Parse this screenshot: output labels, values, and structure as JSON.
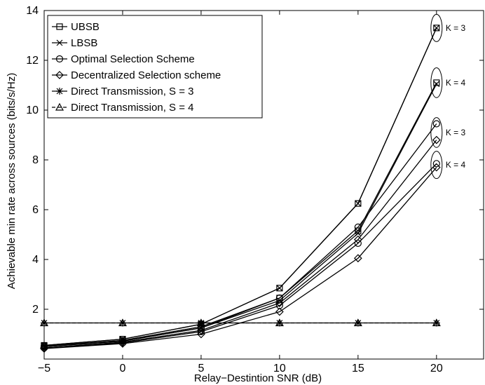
{
  "chart_data": {
    "type": "line",
    "xlabel": "Relay−Destintion SNR (dB)",
    "ylabel": "Achievable min rate across sources (bits/s/Hz)",
    "xlim": [
      -5,
      23
    ],
    "ylim": [
      0,
      14
    ],
    "x_ticks": [
      "−5",
      "0",
      "5",
      "10",
      "15",
      "20"
    ],
    "y_ticks": [
      "2",
      "4",
      "6",
      "8",
      "10",
      "12",
      "14"
    ],
    "grid": false,
    "legend_position": "top-left",
    "legend": [
      {
        "label": "UBSB",
        "marker": "square",
        "dash": "solid"
      },
      {
        "label": "LBSB",
        "marker": "x",
        "dash": "solid"
      },
      {
        "label": "Optimal Selection Scheme",
        "marker": "circle",
        "dash": "solid"
      },
      {
        "label": "Decentralized Selection scheme",
        "marker": "diamond",
        "dash": "solid"
      },
      {
        "label": "Direct Transmission, S = 3",
        "marker": "star",
        "dash": "solid"
      },
      {
        "label": "Direct Transmission, S = 4",
        "marker": "triangle",
        "dash": "dashed"
      }
    ],
    "x": [
      -5,
      0,
      5,
      10,
      15,
      20
    ],
    "series": [
      {
        "group": "UBSB",
        "marker": "square",
        "dash": "solid",
        "values": [
          0.55,
          0.8,
          1.4,
          2.85,
          6.25,
          13.3
        ]
      },
      {
        "group": "LBSB",
        "marker": "x",
        "dash": "solid",
        "values": [
          0.55,
          0.8,
          1.4,
          2.85,
          6.25,
          13.3
        ]
      },
      {
        "group": "UBSB",
        "marker": "square",
        "dash": "solid",
        "values": [
          0.52,
          0.75,
          1.3,
          2.45,
          5.15,
          11.1
        ]
      },
      {
        "group": "LBSB",
        "marker": "x",
        "dash": "solid",
        "values": [
          0.5,
          0.72,
          1.25,
          2.35,
          5.05,
          11.05
        ]
      },
      {
        "group": "Optimal Selection Scheme",
        "marker": "circle",
        "dash": "solid",
        "values": [
          0.5,
          0.72,
          1.25,
          2.45,
          5.3,
          9.45
        ]
      },
      {
        "group": "Decentralized Selection scheme",
        "marker": "diamond",
        "dash": "solid",
        "values": [
          0.45,
          0.68,
          1.15,
          2.25,
          4.8,
          8.8
        ]
      },
      {
        "group": "Optimal Selection Scheme",
        "marker": "circle",
        "dash": "solid",
        "values": [
          0.45,
          0.65,
          1.1,
          2.15,
          4.65,
          7.85
        ]
      },
      {
        "group": "Decentralized Selection scheme",
        "marker": "diamond",
        "dash": "solid",
        "values": [
          0.42,
          0.62,
          1.0,
          1.9,
          4.05,
          7.7
        ]
      },
      {
        "group": "Direct Transmission, S = 3",
        "marker": "star",
        "dash": "solid",
        "values": [
          1.45,
          1.45,
          1.45,
          1.45,
          1.45,
          1.45
        ]
      },
      {
        "group": "Direct Transmission, S = 4",
        "marker": "triangle",
        "dash": "dashed",
        "values": [
          1.45,
          1.45,
          1.45,
          1.45,
          1.45,
          1.45
        ]
      }
    ],
    "annotations": [
      {
        "text": "K = 3",
        "x": 20,
        "y_center": 13.3,
        "y_half": 0.55
      },
      {
        "text": "K = 4",
        "x": 20,
        "y_center": 11.1,
        "y_half": 0.6
      },
      {
        "text": "K = 3",
        "x": 20,
        "y_center": 9.1,
        "y_half": 0.6
      },
      {
        "text": "K = 4",
        "x": 20,
        "y_center": 7.8,
        "y_half": 0.55
      }
    ]
  }
}
